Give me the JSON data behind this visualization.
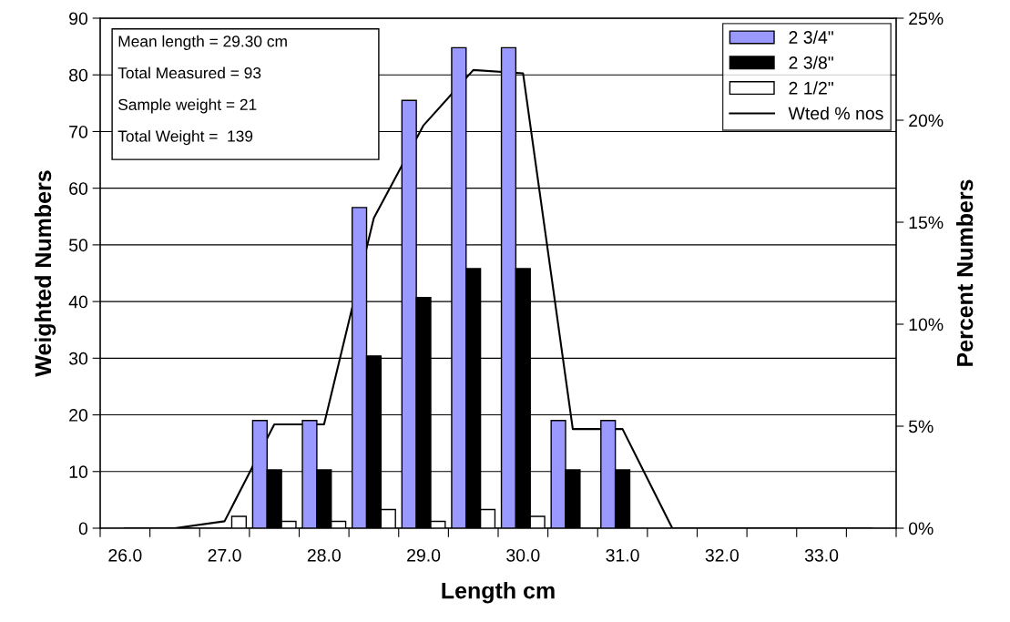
{
  "chart_data": {
    "type": "bar",
    "xlabel": "Length cm",
    "ylabel": "Weighted Numbers",
    "y2label": "Percent Numbers",
    "categories": [
      "26.0",
      null,
      "27.0",
      null,
      "28.0",
      null,
      "29.0",
      null,
      "30.0",
      null,
      "31.0",
      null,
      "32.0",
      null,
      "33.0",
      null
    ],
    "series": [
      {
        "name": "2 3/4\"",
        "color": "#9999ff",
        "values": [
          null,
          null,
          null,
          19.0,
          19.0,
          56.6,
          75.5,
          84.8,
          84.8,
          19.0,
          19.0,
          null,
          null,
          null,
          null,
          null
        ]
      },
      {
        "name": "2 3/8\"",
        "color": "#000000",
        "values": [
          null,
          null,
          null,
          10.3,
          10.3,
          30.4,
          40.7,
          45.8,
          45.8,
          10.3,
          10.3,
          null,
          null,
          null,
          null,
          null
        ]
      },
      {
        "name": "2 1/2\"",
        "color": "#ffffff",
        "values": [
          null,
          null,
          2.1,
          1.2,
          1.2,
          3.3,
          1.2,
          3.3,
          2.1,
          null,
          null,
          null,
          null,
          null,
          null,
          null
        ]
      },
      {
        "name": "Wted % nos",
        "type": "line",
        "axis": "y2",
        "color": "#000000",
        "values": [
          0,
          0,
          0.34,
          5.09,
          5.09,
          15.2,
          19.75,
          22.46,
          22.3,
          4.86,
          4.86,
          0,
          0,
          0,
          0,
          0
        ]
      }
    ],
    "ylim": [
      0,
      90
    ],
    "yticks": [
      0,
      10,
      20,
      30,
      40,
      50,
      60,
      70,
      80,
      90
    ],
    "y2lim": [
      0,
      25
    ],
    "y2ticks": [
      {
        "value": 0,
        "label": "0%"
      },
      {
        "value": 5,
        "label": "5%"
      },
      {
        "value": 10,
        "label": "10%"
      },
      {
        "value": 15,
        "label": "15%"
      },
      {
        "value": 20,
        "label": "20%"
      },
      {
        "value": 25,
        "label": "25%"
      }
    ],
    "grid": "y",
    "legend": "top right",
    "annotations": [
      "Mean length = 29.30 cm",
      "Total Measured = 93",
      "Sample weight = 21",
      "Total Weight =  139"
    ]
  }
}
